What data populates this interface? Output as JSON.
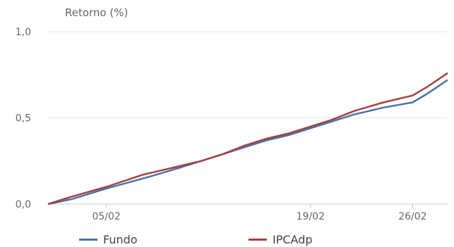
{
  "chart_data": {
    "type": "line",
    "ylabel": "Retorno (%)",
    "xlabel": "",
    "title": "",
    "ylim": [
      0,
      1.0
    ],
    "y_ticks": [
      {
        "value": 0.0,
        "label": "0,0"
      },
      {
        "value": 0.5,
        "label": "0,5"
      },
      {
        "value": 1.0,
        "label": "1,0"
      }
    ],
    "x_ticks": [
      {
        "day": 5,
        "label": "05/02"
      },
      {
        "day": 19,
        "label": "19/02"
      },
      {
        "day": 26,
        "label": "26/02"
      }
    ],
    "xlim": [
      1,
      28.4
    ],
    "grid": true,
    "legend_position": "bottom",
    "series": [
      {
        "name": "Fundo",
        "color": "#4a72a8",
        "points": [
          [
            1,
            0.0
          ],
          [
            2.7,
            0.03
          ],
          [
            5,
            0.09
          ],
          [
            8,
            0.16
          ],
          [
            10,
            0.21
          ],
          [
            11.5,
            0.25
          ],
          [
            13,
            0.29
          ],
          [
            14.5,
            0.33
          ],
          [
            16,
            0.37
          ],
          [
            17.5,
            0.4
          ],
          [
            19,
            0.44
          ],
          [
            20.5,
            0.48
          ],
          [
            22,
            0.52
          ],
          [
            24,
            0.56
          ],
          [
            26,
            0.59
          ],
          [
            27,
            0.64
          ],
          [
            28.4,
            0.72
          ]
        ]
      },
      {
        "name": "IPCAdp",
        "color": "#a5413f",
        "points": [
          [
            1,
            0.0
          ],
          [
            2.5,
            0.04
          ],
          [
            5,
            0.1
          ],
          [
            7.5,
            0.17
          ],
          [
            10,
            0.22
          ],
          [
            11.5,
            0.25
          ],
          [
            13,
            0.29
          ],
          [
            14.5,
            0.34
          ],
          [
            16,
            0.38
          ],
          [
            17.5,
            0.41
          ],
          [
            19,
            0.45
          ],
          [
            20.5,
            0.49
          ],
          [
            22,
            0.54
          ],
          [
            24,
            0.59
          ],
          [
            26,
            0.63
          ],
          [
            27,
            0.68
          ],
          [
            28.4,
            0.76
          ]
        ]
      }
    ]
  }
}
